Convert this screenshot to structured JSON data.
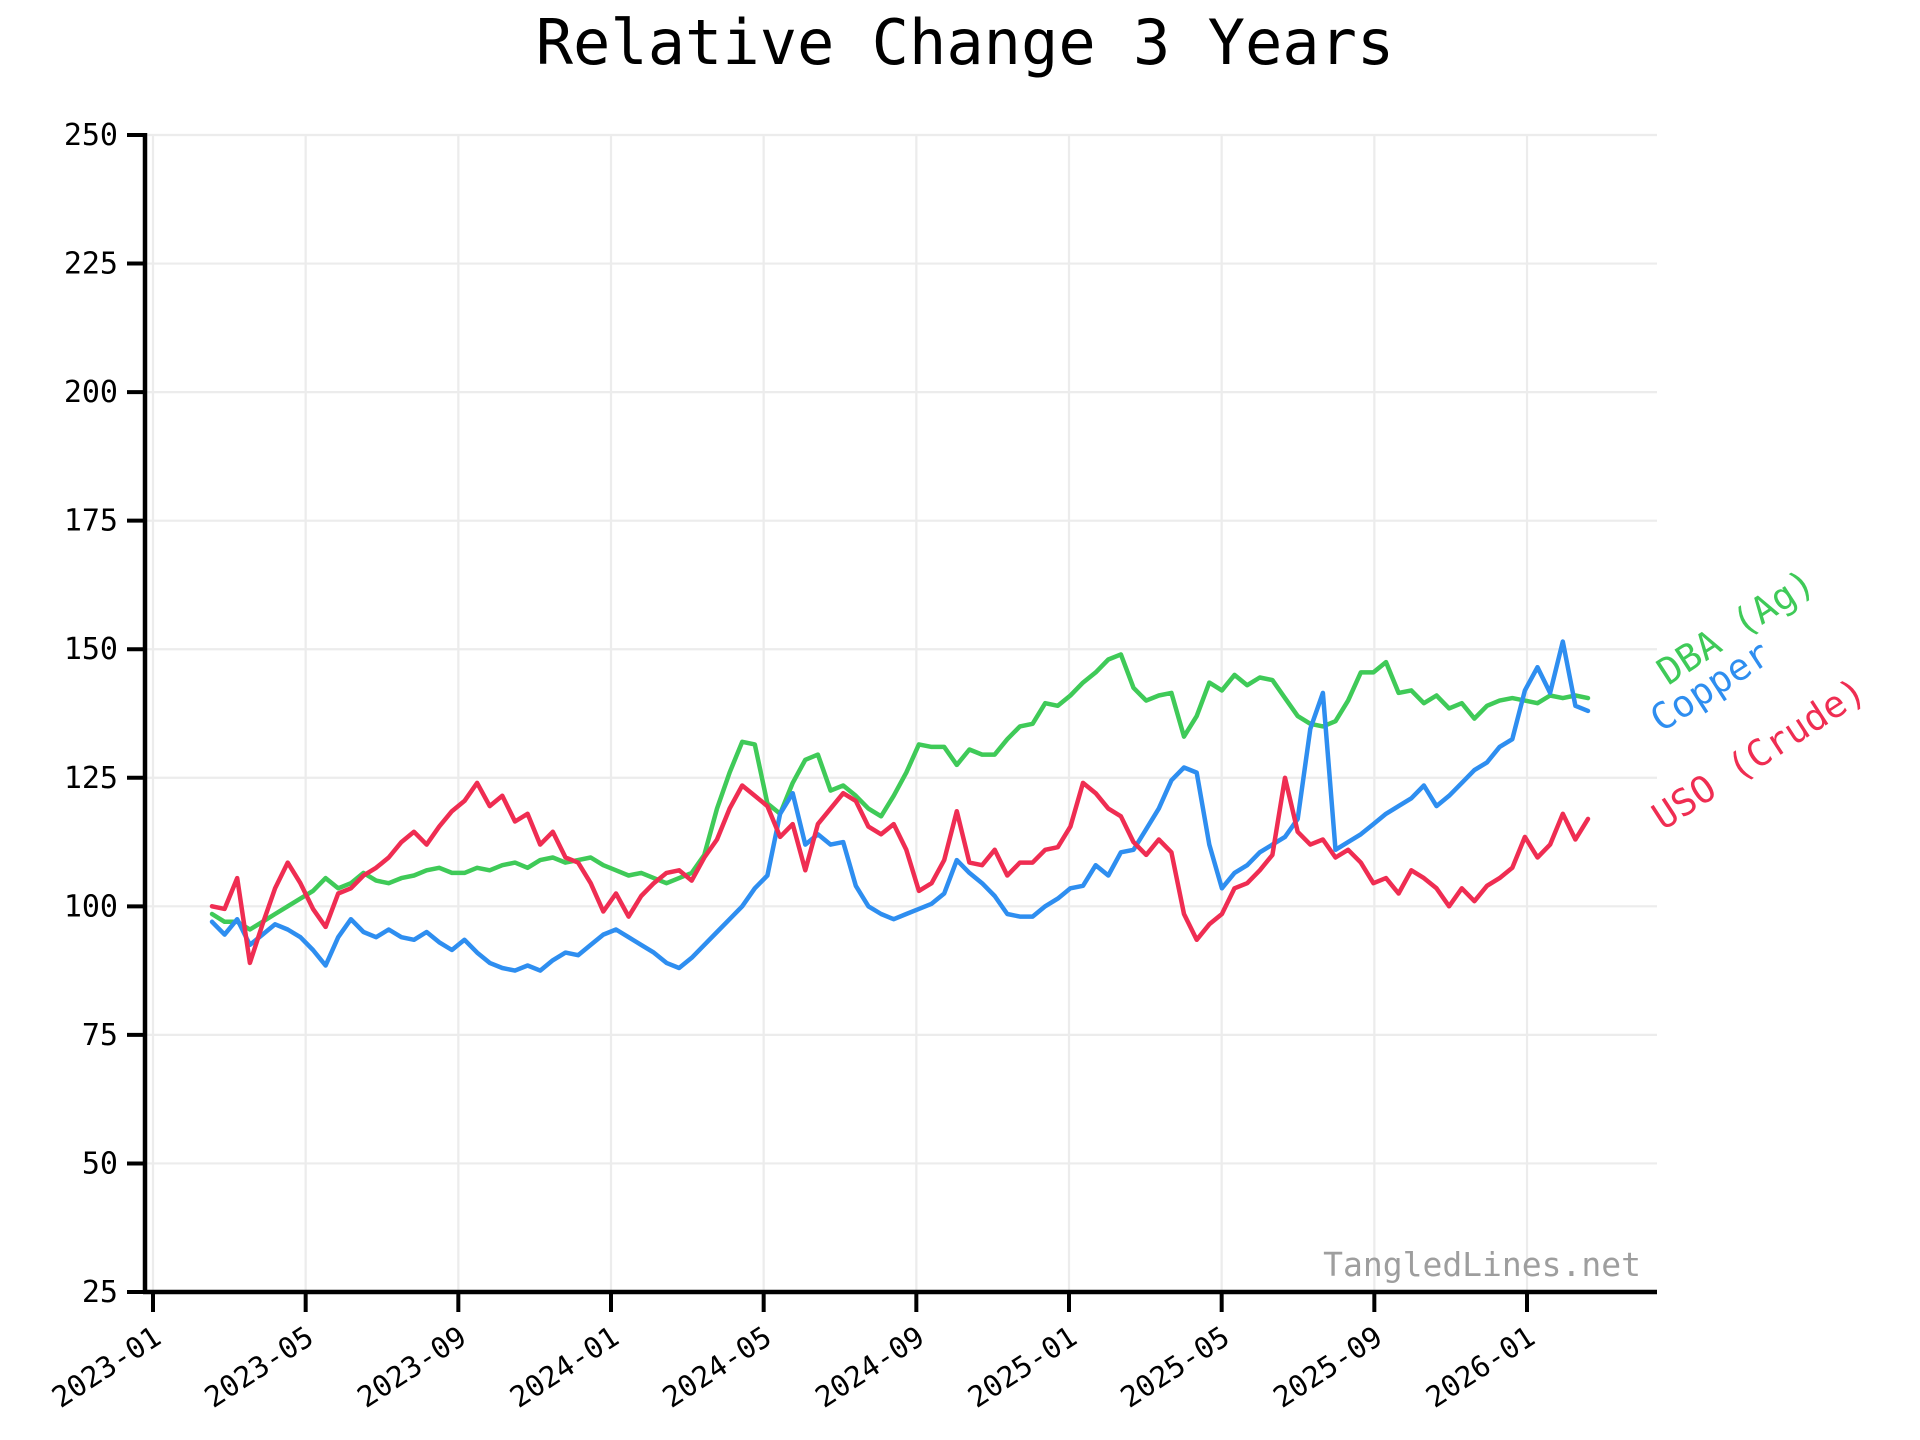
{
  "title": "Relative Change 3 Years",
  "watermark": "TangledLines.net",
  "chart_data": {
    "type": "line",
    "title": "Relative Change 3 Years",
    "x_start": "2023-02",
    "x_end": "2026-02",
    "n_points": 110,
    "x_tick_labels": [
      "2023-01",
      "2023-05",
      "2023-09",
      "2024-01",
      "2024-05",
      "2024-09",
      "2025-01",
      "2025-05",
      "2025-09",
      "2026-01"
    ],
    "y_ticks": [
      25,
      50,
      75,
      100,
      125,
      150,
      175,
      200,
      225,
      250
    ],
    "ylim": [
      25,
      250
    ],
    "grid": true,
    "baseline_value": 100,
    "legend_position": "labels at right end of lines, rotated -33deg",
    "axis_color": "#000000",
    "grid_color": "#ececec",
    "tick_label_color": "#000000",
    "watermark_color": "#9e9e9e",
    "series": [
      {
        "name": "DBA (Ag)",
        "color": "#3fca58",
        "values": [
          98.5,
          97,
          97,
          95.5,
          97,
          98.5,
          100,
          101.5,
          103,
          105.5,
          103.5,
          104.5,
          106.5,
          105,
          104.5,
          105.5,
          106,
          107,
          107.5,
          106.5,
          106.5,
          107.5,
          107,
          108,
          108.5,
          107.5,
          109,
          109.5,
          108.5,
          109,
          109.5,
          108,
          107,
          106,
          106.5,
          105.5,
          104.5,
          105.5,
          106.5,
          110,
          119,
          126,
          132,
          131.5,
          120,
          118,
          124,
          128.5,
          129.5,
          122.5,
          123.5,
          121.5,
          119,
          117.5,
          121.5,
          126,
          131.5,
          131,
          131,
          127.5,
          130.5,
          129.5,
          129.5,
          132.5,
          135,
          135.5,
          139.5,
          139,
          141,
          143.5,
          145.5,
          148,
          149,
          142.5,
          140,
          141,
          141.5,
          133,
          137,
          143.5,
          142,
          145,
          143,
          144.5,
          144,
          140.5,
          137,
          135.5,
          135,
          136,
          140,
          145.5,
          145.5,
          147.5,
          141.5,
          142,
          139.5,
          141,
          138.5,
          139.5,
          136.5,
          139,
          140,
          140.5,
          140,
          139.5,
          141,
          140.5,
          141,
          140.5
        ]
      },
      {
        "name": "Copper",
        "color": "#2e8ef0",
        "values": [
          97,
          94.5,
          97.5,
          92.5,
          94.5,
          96.5,
          95.5,
          94,
          91.5,
          88.5,
          94,
          97.5,
          95,
          94,
          95.5,
          94,
          93.5,
          95,
          93,
          91.5,
          93.5,
          91,
          89,
          88,
          87.5,
          88.5,
          87.5,
          89.5,
          91,
          90.5,
          92.5,
          94.5,
          95.5,
          94,
          92.5,
          91,
          89,
          88,
          90,
          92.5,
          95,
          97.5,
          100,
          103.5,
          106,
          118,
          122,
          112,
          114,
          112,
          112.5,
          104,
          100,
          98.5,
          97.5,
          98.5,
          99.5,
          100.5,
          102.5,
          109,
          106.5,
          104.5,
          102,
          98.5,
          98,
          98,
          100,
          101.5,
          103.5,
          104,
          108,
          106,
          110.5,
          111,
          115,
          119,
          124.5,
          127,
          126,
          112,
          103.5,
          106.5,
          108,
          110.5,
          112,
          113.5,
          117,
          134.5,
          141.5,
          111,
          112.5,
          114,
          116,
          118,
          119.5,
          121,
          123.5,
          119.5,
          121.5,
          124,
          126.5,
          128,
          131,
          132.5,
          142,
          146.5,
          141.5,
          151.5,
          139,
          138
        ]
      },
      {
        "name": "USO (Crude)",
        "color": "#ef2d52",
        "values": [
          100,
          99.5,
          105.5,
          89,
          96.5,
          103.5,
          108.5,
          104.5,
          99.5,
          96,
          102.5,
          103.5,
          106,
          107.5,
          109.5,
          112.5,
          114.5,
          112,
          115.5,
          118.5,
          120.5,
          124,
          119.5,
          121.5,
          116.5,
          118,
          112,
          114.5,
          109.5,
          108.5,
          104.5,
          99,
          102.5,
          98,
          102,
          104.5,
          106.5,
          107,
          105,
          109.5,
          113,
          119,
          123.5,
          121.5,
          119.5,
          113.5,
          116,
          107,
          116,
          119,
          122,
          120.5,
          115.5,
          114,
          116,
          111,
          103,
          104.5,
          109,
          118.5,
          108.5,
          108,
          111,
          106,
          108.5,
          108.5,
          111,
          111.5,
          115.5,
          124,
          122,
          119,
          117.5,
          112.5,
          110,
          113,
          110.5,
          98.5,
          93.5,
          96.5,
          98.5,
          103.5,
          104.5,
          107,
          110,
          125,
          114.5,
          112,
          113,
          109.5,
          111,
          108.5,
          104.5,
          105.5,
          102.5,
          107,
          105.5,
          103.5,
          100,
          103.5,
          101,
          104,
          105.5,
          107.5,
          113.5,
          109.5,
          112,
          118,
          113,
          117
        ]
      }
    ]
  }
}
